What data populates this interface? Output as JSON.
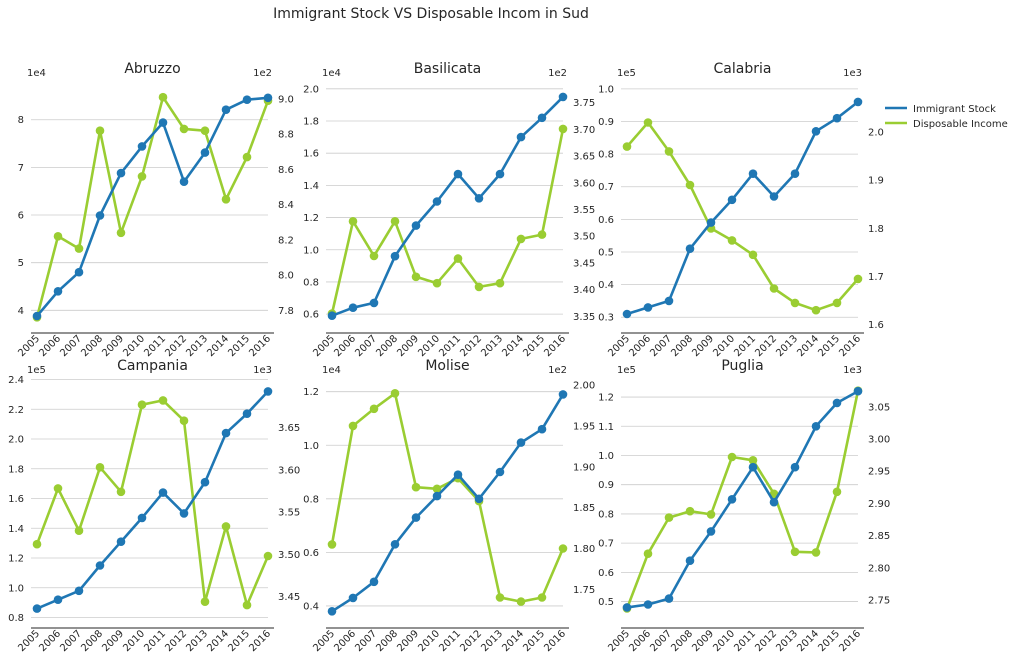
{
  "title": "Immigrant Stock VS Disposable Incom in Sud",
  "colors": {
    "immigrant": "#1f77b4",
    "income": "#9acd32"
  },
  "legend": [
    "Immigrant Stock",
    "Disposable Income"
  ],
  "chart_data": [
    {
      "type": "line",
      "title": "Abruzzo",
      "x": [
        "2005",
        "2006",
        "2007",
        "2008",
        "2009",
        "2010",
        "2011",
        "2012",
        "2013",
        "2014",
        "2015",
        "2016"
      ],
      "left_multiplier": "1e4",
      "right_multiplier": "1e2",
      "left_ylim": [
        3.65,
        8.75
      ],
      "left_ticks": [
        4,
        5,
        6,
        7,
        8
      ],
      "right_ylim": [
        7.705,
        9.085
      ],
      "right_ticks": [
        7.8,
        8.0,
        8.2,
        8.4,
        8.6,
        8.8,
        9.0
      ],
      "series": [
        {
          "name": "Immigrant Stock",
          "axis": "left",
          "values": [
            3.88,
            4.4,
            4.8,
            5.99,
            6.88,
            7.44,
            7.94,
            6.7,
            7.31,
            8.21,
            8.42,
            8.46
          ]
        },
        {
          "name": "Disposable Income",
          "axis": "right",
          "values": [
            7.76,
            8.22,
            8.15,
            8.82,
            8.24,
            8.56,
            9.01,
            8.83,
            8.82,
            8.43,
            8.67,
            8.99
          ]
        }
      ]
    },
    {
      "type": "line",
      "title": "Basilicata",
      "x": [
        "2005",
        "2006",
        "2007",
        "2008",
        "2009",
        "2010",
        "2011",
        "2012",
        "2013",
        "2014",
        "2015",
        "2016"
      ],
      "left_multiplier": "1e4",
      "right_multiplier": "1e2",
      "left_ylim": [
        0.52,
        2.03
      ],
      "left_ticks": [
        0.6,
        0.8,
        1.0,
        1.2,
        1.4,
        1.6,
        1.8,
        2.0
      ],
      "right_ylim": [
        3.33,
        3.785
      ],
      "right_ticks": [
        3.35,
        3.4,
        3.45,
        3.5,
        3.55,
        3.6,
        3.65,
        3.7,
        3.75
      ],
      "series": [
        {
          "name": "Immigrant Stock",
          "axis": "left",
          "values": [
            0.59,
            0.64,
            0.67,
            0.96,
            1.15,
            1.3,
            1.47,
            1.32,
            1.47,
            1.7,
            1.82,
            1.95
          ]
        },
        {
          "name": "Disposable Income",
          "axis": "right",
          "values": [
            3.355,
            3.528,
            3.463,
            3.528,
            3.424,
            3.412,
            3.458,
            3.405,
            3.412,
            3.495,
            3.503,
            3.701
          ]
        }
      ]
    },
    {
      "type": "line",
      "title": "Calabria",
      "x": [
        "2005",
        "2006",
        "2007",
        "2008",
        "2009",
        "2010",
        "2011",
        "2012",
        "2013",
        "2014",
        "2015",
        "2016"
      ],
      "left_multiplier": "1e5",
      "right_multiplier": "1e3",
      "left_ylim": [
        0.27,
        1.015
      ],
      "left_ticks": [
        0.3,
        0.4,
        0.5,
        0.6,
        0.7,
        0.8,
        0.9,
        1.0
      ],
      "right_ylim": [
        1.595,
        2.1
      ],
      "right_ticks": [
        1.6,
        1.7,
        1.8,
        1.9,
        2.0
      ],
      "series": [
        {
          "name": "Immigrant Stock",
          "axis": "left",
          "values": [
            0.31,
            0.33,
            0.35,
            0.51,
            0.59,
            0.66,
            0.74,
            0.67,
            0.74,
            0.87,
            0.91,
            0.96
          ]
        },
        {
          "name": "Disposable Income",
          "axis": "right",
          "values": [
            1.97,
            2.02,
            1.96,
            1.89,
            1.8,
            1.775,
            1.745,
            1.675,
            1.645,
            1.63,
            1.645,
            1.695
          ]
        }
      ]
    },
    {
      "type": "line",
      "title": "Campania",
      "x": [
        "2005",
        "2006",
        "2007",
        "2008",
        "2009",
        "2010",
        "2011",
        "2012",
        "2013",
        "2014",
        "2015",
        "2016"
      ],
      "left_multiplier": "1e5",
      "right_multiplier": "1e3",
      "left_ylim": [
        0.77,
        2.39
      ],
      "left_ticks": [
        0.8,
        1.0,
        1.2,
        1.4,
        1.6,
        1.8,
        2.0,
        2.2,
        2.4
      ],
      "right_ylim": [
        3.42,
        3.705
      ],
      "right_ticks": [
        3.45,
        3.5,
        3.55,
        3.6,
        3.65
      ],
      "series": [
        {
          "name": "Immigrant Stock",
          "axis": "left",
          "values": [
            0.86,
            0.92,
            0.98,
            1.15,
            1.31,
            1.47,
            1.64,
            1.5,
            1.71,
            2.04,
            2.17,
            2.32
          ]
        },
        {
          "name": "Disposable Income",
          "axis": "right",
          "values": [
            3.512,
            3.578,
            3.528,
            3.603,
            3.574,
            3.677,
            3.682,
            3.658,
            3.444,
            3.533,
            3.44,
            3.498
          ]
        }
      ]
    },
    {
      "type": "line",
      "title": "Molise",
      "x": [
        "2005",
        "2006",
        "2007",
        "2008",
        "2009",
        "2010",
        "2011",
        "2012",
        "2013",
        "2014",
        "2015",
        "2016"
      ],
      "left_multiplier": "1e4",
      "right_multiplier": "1e2",
      "left_ylim": [
        0.34,
        1.24
      ],
      "left_ticks": [
        0.4,
        0.6,
        0.8,
        1.0,
        1.2
      ],
      "right_ylim": [
        1.71,
        2.005
      ],
      "right_ticks": [
        1.75,
        1.8,
        1.85,
        1.9,
        1.95,
        2.0
      ],
      "series": [
        {
          "name": "Immigrant Stock",
          "axis": "left",
          "values": [
            0.38,
            0.43,
            0.49,
            0.63,
            0.73,
            0.81,
            0.89,
            0.8,
            0.9,
            1.01,
            1.06,
            1.19
          ]
        },
        {
          "name": "Disposable Income",
          "axis": "right",
          "values": [
            1.805,
            1.95,
            1.971,
            1.99,
            1.875,
            1.873,
            1.886,
            1.858,
            1.74,
            1.735,
            1.74,
            1.8
          ]
        }
      ]
    },
    {
      "type": "line",
      "title": "Puglia",
      "x": [
        "2005",
        "2006",
        "2007",
        "2008",
        "2009",
        "2010",
        "2011",
        "2012",
        "2013",
        "2014",
        "2015",
        "2016"
      ],
      "left_multiplier": "1e5",
      "right_multiplier": "1e3",
      "left_ylim": [
        0.43,
        1.255
      ],
      "left_ticks": [
        0.5,
        0.6,
        0.7,
        0.8,
        0.9,
        1.0,
        1.1,
        1.2
      ],
      "right_ylim": [
        2.716,
        3.09
      ],
      "right_ticks": [
        2.75,
        2.8,
        2.85,
        2.9,
        2.95,
        3.0,
        3.05
      ],
      "series": [
        {
          "name": "Immigrant Stock",
          "axis": "left",
          "values": [
            0.48,
            0.49,
            0.51,
            0.64,
            0.74,
            0.85,
            0.96,
            0.84,
            0.96,
            1.1,
            1.18,
            1.22
          ]
        },
        {
          "name": "Disposable Income",
          "axis": "right",
          "values": [
            2.737,
            2.822,
            2.878,
            2.888,
            2.883,
            2.972,
            2.967,
            2.915,
            2.825,
            2.824,
            2.918,
            3.075
          ]
        }
      ]
    }
  ]
}
